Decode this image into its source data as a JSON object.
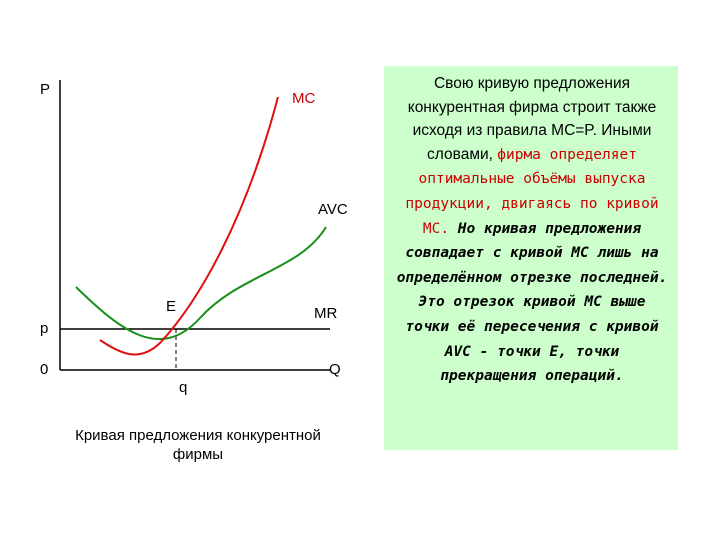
{
  "diagram": {
    "axis_y_label": "P",
    "axis_x_label": "Q",
    "origin_label": "0",
    "price_label": "p",
    "quantity_label": "q",
    "point_label": "E",
    "curves": {
      "mc_label": "MC",
      "avc_label": "AVC",
      "mr_label": "MR"
    },
    "colors": {
      "mc": "#e01010",
      "avc": "#1a8f1a",
      "axes": "#000000",
      "info_background": "#ccffcc",
      "highlight_text": "#cc0000"
    }
  },
  "caption": {
    "line1": "Кривая предложения конкурентной",
    "line2": "фирмы"
  },
  "info": {
    "text_normal": "Свою кривую предложения конкурентная фирма строит также исходя из правила MC=P. Иными словами, ",
    "text_red": "фирма определяет оптимальные объёмы выпуска продукции, двигаясь по кривой MC.",
    "text_bold": " Но кривая предложения совпадает с кривой MC лишь на определённом отрезке последней. Это отрезок кривой MC выше точки её пересечения с кривой AVC - точки E, точки прекращения операций."
  }
}
